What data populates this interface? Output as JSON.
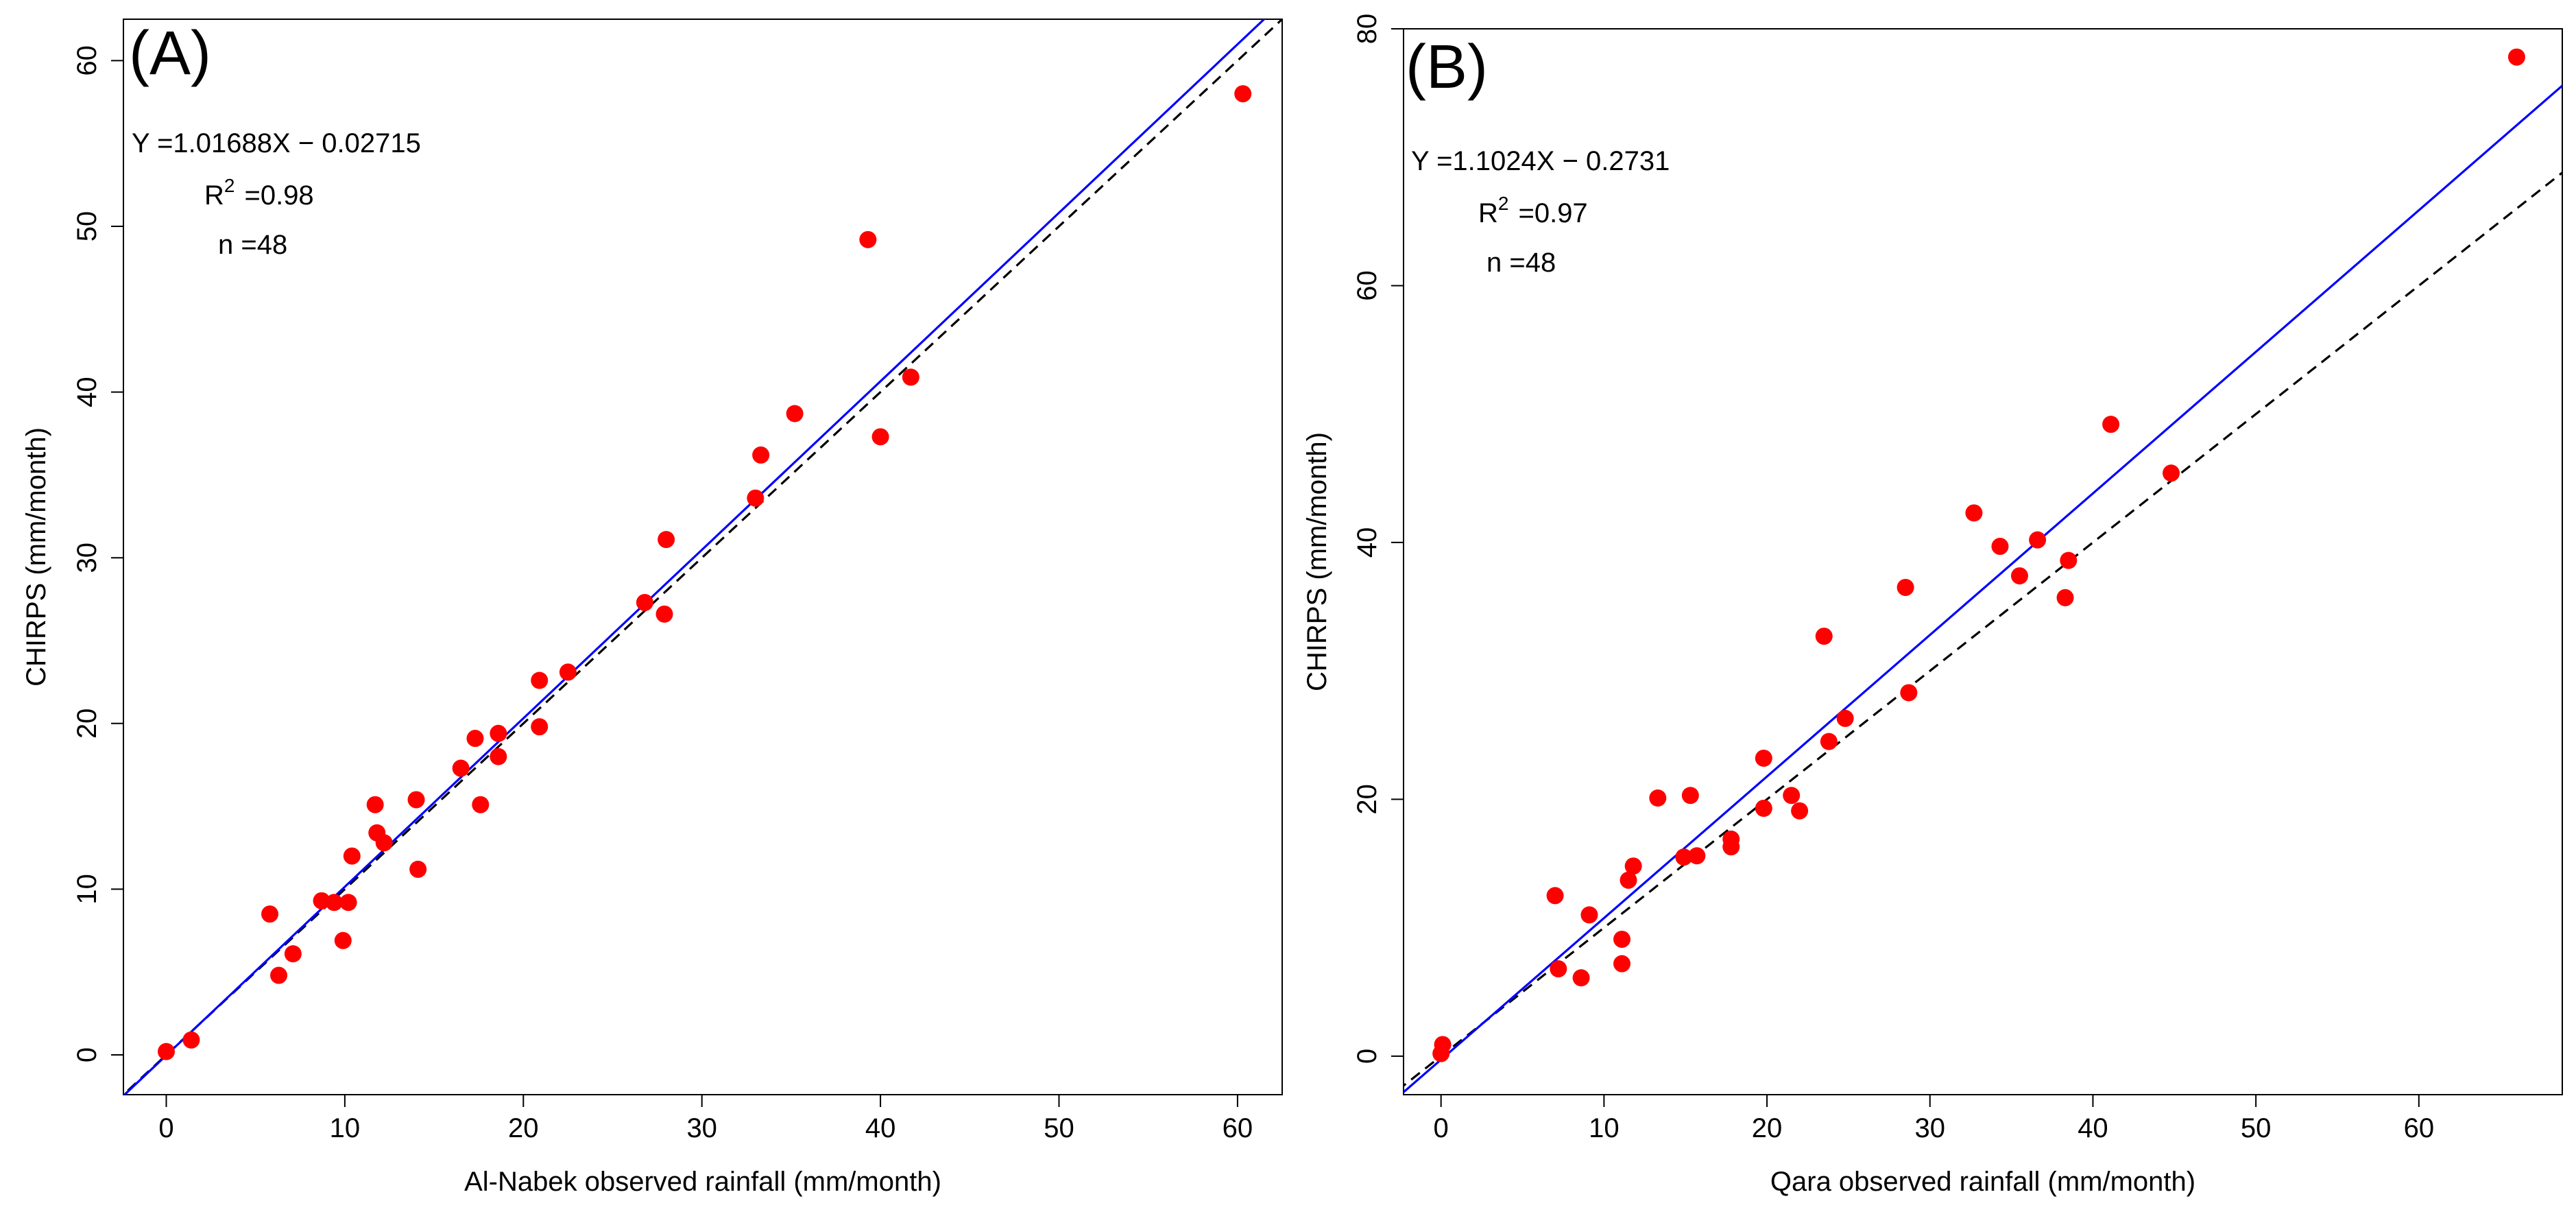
{
  "chart_data": [
    {
      "type": "scatter",
      "panel_label": "(A)",
      "xlabel": "Al-Nabek observed rainfall (mm/month)",
      "ylabel": "CHIRPS (mm/month)",
      "xlim": [
        -2.4,
        62.5
      ],
      "ylim": [
        -2.4,
        62.5
      ],
      "xticks": [
        0,
        10,
        20,
        30,
        40,
        50,
        60
      ],
      "yticks": [
        0,
        10,
        20,
        30,
        40,
        50,
        60
      ],
      "fit": {
        "slope": 1.01688,
        "intercept": -0.02715,
        "color": "#0000ff"
      },
      "one_to_one": {
        "color": "#000000",
        "dashed": true
      },
      "equation": "Y =1.01688X − 0.02715",
      "r2_label": "R",
      "r2_sup": "2",
      "r2_value": "=0.98",
      "n_label": "n =48",
      "point_color": "#ff0000",
      "points": [
        [
          0,
          0.2
        ],
        [
          1.4,
          0.9
        ],
        [
          5.8,
          8.5
        ],
        [
          6.3,
          4.8
        ],
        [
          7.1,
          6.1
        ],
        [
          8.7,
          9.3
        ],
        [
          9.4,
          9.2
        ],
        [
          9.9,
          6.9
        ],
        [
          10.2,
          9.2
        ],
        [
          10.4,
          12.0
        ],
        [
          11.7,
          15.1
        ],
        [
          11.8,
          13.4
        ],
        [
          12.2,
          12.8
        ],
        [
          14.0,
          15.4
        ],
        [
          14.1,
          11.2
        ],
        [
          16.5,
          17.3
        ],
        [
          17.3,
          19.1
        ],
        [
          17.6,
          15.1
        ],
        [
          18.6,
          19.4
        ],
        [
          18.6,
          18.0
        ],
        [
          20.9,
          19.8
        ],
        [
          20.9,
          22.6
        ],
        [
          22.5,
          23.1
        ],
        [
          26.8,
          27.3
        ],
        [
          27.9,
          26.6
        ],
        [
          28.0,
          31.1
        ],
        [
          33.0,
          33.6
        ],
        [
          33.3,
          36.2
        ],
        [
          35.2,
          38.7
        ],
        [
          39.3,
          49.2
        ],
        [
          40.0,
          37.3
        ],
        [
          41.7,
          40.9
        ],
        [
          60.3,
          58.0
        ]
      ]
    },
    {
      "type": "scatter",
      "panel_label": "(B)",
      "xlabel": "Qara observed rainfall (mm/month)",
      "ylabel": "CHIRPS (mm/month)",
      "xlim": [
        -2.3,
        68.8
      ],
      "ylim": [
        -3.0,
        80.0
      ],
      "xticks": [
        0,
        10,
        20,
        30,
        40,
        50,
        60
      ],
      "yticks": [
        0,
        20,
        40,
        60,
        80
      ],
      "fit": {
        "slope": 1.1024,
        "intercept": -0.2731,
        "color": "#0000ff"
      },
      "one_to_one": {
        "color": "#000000",
        "dashed": true
      },
      "equation": "Y =1.1024X − 0.2731",
      "r2_label": "R",
      "r2_sup": "2",
      "r2_value": "=0.97",
      "n_label": "n =48",
      "point_color": "#ff0000",
      "points": [
        [
          0,
          0.2
        ],
        [
          0.1,
          0.9
        ],
        [
          7.0,
          12.5
        ],
        [
          7.2,
          6.8
        ],
        [
          8.6,
          6.1
        ],
        [
          9.1,
          11.0
        ],
        [
          11.1,
          7.2
        ],
        [
          11.1,
          9.1
        ],
        [
          11.5,
          13.7
        ],
        [
          11.8,
          14.8
        ],
        [
          13.3,
          20.1
        ],
        [
          14.9,
          15.5
        ],
        [
          15.3,
          20.3
        ],
        [
          15.7,
          15.6
        ],
        [
          17.8,
          16.3
        ],
        [
          17.8,
          16.9
        ],
        [
          19.8,
          23.2
        ],
        [
          19.8,
          19.3
        ],
        [
          21.5,
          20.3
        ],
        [
          22.0,
          19.1
        ],
        [
          23.5,
          32.7
        ],
        [
          23.8,
          24.5
        ],
        [
          24.8,
          26.3
        ],
        [
          28.5,
          36.5
        ],
        [
          28.7,
          28.3
        ],
        [
          32.7,
          42.3
        ],
        [
          34.3,
          39.7
        ],
        [
          35.5,
          37.4
        ],
        [
          36.6,
          40.2
        ],
        [
          38.3,
          35.7
        ],
        [
          38.5,
          38.6
        ],
        [
          41.1,
          49.2
        ],
        [
          44.8,
          45.4
        ],
        [
          66.0,
          77.8
        ]
      ]
    }
  ]
}
